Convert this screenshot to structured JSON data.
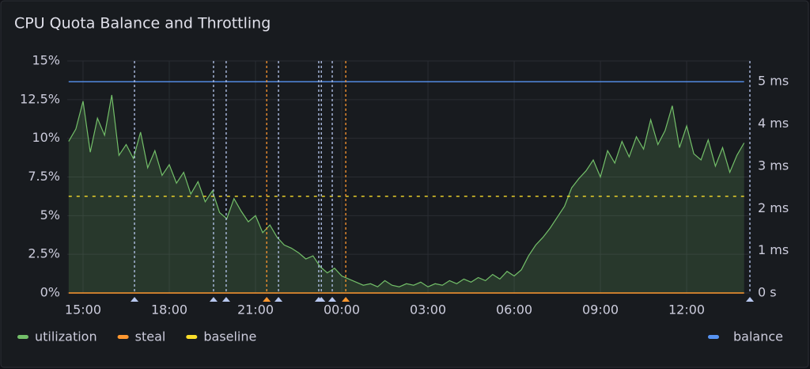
{
  "chart_data": {
    "type": "line",
    "title": "CPU Quota Balance and Throttling",
    "x": [
      14.5,
      14.75,
      15,
      15.25,
      15.5,
      15.75,
      16,
      16.25,
      16.5,
      16.75,
      17,
      17.25,
      17.5,
      17.75,
      18,
      18.25,
      18.5,
      18.75,
      19,
      19.25,
      19.5,
      19.75,
      20,
      20.25,
      20.5,
      20.75,
      21,
      21.25,
      21.5,
      21.75,
      22,
      22.25,
      22.5,
      22.75,
      23,
      23.25,
      23.5,
      23.75,
      24,
      24.25,
      24.5,
      24.75,
      25,
      25.25,
      25.5,
      25.75,
      26,
      26.25,
      26.5,
      26.75,
      27,
      27.25,
      27.5,
      27.75,
      28,
      28.25,
      28.5,
      28.75,
      29,
      29.25,
      29.5,
      29.75,
      30,
      30.25,
      30.5,
      30.75,
      31,
      31.25,
      31.5,
      31.75,
      32,
      32.25,
      32.5,
      32.75,
      33,
      33.25,
      33.5,
      33.75,
      34,
      34.25,
      34.5,
      34.75,
      35,
      35.25,
      35.5,
      35.75,
      36,
      36.25,
      36.5,
      36.75,
      37,
      37.25,
      37.5,
      37.75,
      38
    ],
    "xlim": [
      14.45,
      38.2
    ],
    "xticks": [
      {
        "value": 15,
        "label": "15:00"
      },
      {
        "value": 18,
        "label": "18:00"
      },
      {
        "value": 21,
        "label": "21:00"
      },
      {
        "value": 24,
        "label": "00:00"
      },
      {
        "value": 27,
        "label": "03:00"
      },
      {
        "value": 30,
        "label": "06:00"
      },
      {
        "value": 33,
        "label": "09:00"
      },
      {
        "value": 36,
        "label": "12:00"
      }
    ],
    "ylim": [
      0,
      15
    ],
    "yticks": [
      {
        "value": 0,
        "label": "0%"
      },
      {
        "value": 2.5,
        "label": "2.5%"
      },
      {
        "value": 5,
        "label": "5%"
      },
      {
        "value": 7.5,
        "label": "7.5%"
      },
      {
        "value": 10,
        "label": "10%"
      },
      {
        "value": 12.5,
        "label": "12.5%"
      },
      {
        "value": 15,
        "label": "15%"
      }
    ],
    "y2lim": [
      0,
      5.49
    ],
    "y2ticks": [
      {
        "value": 0,
        "label": "0 s"
      },
      {
        "value": 1,
        "label": "1 ms"
      },
      {
        "value": 2,
        "label": "2 ms"
      },
      {
        "value": 3,
        "label": "3 ms"
      },
      {
        "value": 4,
        "label": "4 ms"
      },
      {
        "value": 5,
        "label": "5 ms"
      }
    ],
    "grid": true,
    "series": [
      {
        "name": "utilization",
        "color": "#73bf69",
        "fill": true,
        "values": [
          9.8,
          10.6,
          12.4,
          9.1,
          11.3,
          10.2,
          12.8,
          8.9,
          9.6,
          8.7,
          10.4,
          8.1,
          9.2,
          7.6,
          8.3,
          7.1,
          7.8,
          6.4,
          7.2,
          5.9,
          6.6,
          5.2,
          4.8,
          6.1,
          5.3,
          4.6,
          5.0,
          3.9,
          4.4,
          3.6,
          3.1,
          2.9,
          2.6,
          2.2,
          2.4,
          1.7,
          1.3,
          1.6,
          1.1,
          0.9,
          0.7,
          0.5,
          0.6,
          0.4,
          0.8,
          0.5,
          0.4,
          0.6,
          0.5,
          0.7,
          0.4,
          0.6,
          0.5,
          0.8,
          0.6,
          0.9,
          0.7,
          1.0,
          0.8,
          1.2,
          0.9,
          1.4,
          1.1,
          1.5,
          2.4,
          3.1,
          3.6,
          4.2,
          4.9,
          5.6,
          6.8,
          7.4,
          7.9,
          8.6,
          7.5,
          9.2,
          8.4,
          9.8,
          8.8,
          10.1,
          9.3,
          11.2,
          9.6,
          10.5,
          12.1,
          9.4,
          10.8,
          9.0,
          8.6,
          9.9,
          8.2,
          9.4,
          7.8,
          8.9,
          9.7
        ]
      },
      {
        "name": "steal",
        "color": "#ff9830",
        "values": [
          0,
          0,
          0,
          0,
          0,
          0,
          0,
          0,
          0,
          0,
          0,
          0,
          0,
          0,
          0,
          0,
          0,
          0,
          0,
          0,
          0,
          0,
          0,
          0,
          0,
          0,
          0,
          0,
          0,
          0,
          0,
          0,
          0,
          0,
          0,
          0,
          0,
          0,
          0,
          0,
          0,
          0,
          0,
          0,
          0,
          0,
          0,
          0,
          0,
          0,
          0,
          0,
          0,
          0,
          0,
          0,
          0,
          0,
          0,
          0,
          0,
          0,
          0,
          0,
          0,
          0,
          0,
          0,
          0,
          0,
          0,
          0,
          0,
          0,
          0,
          0,
          0,
          0,
          0,
          0,
          0,
          0,
          0,
          0,
          0,
          0,
          0,
          0,
          0,
          0,
          0,
          0,
          0,
          0,
          0
        ]
      },
      {
        "name": "baseline",
        "color": "#fade2a",
        "dashed": true,
        "values": [
          6.25,
          6.25,
          6.25,
          6.25,
          6.25,
          6.25,
          6.25,
          6.25,
          6.25,
          6.25,
          6.25,
          6.25,
          6.25,
          6.25,
          6.25,
          6.25,
          6.25,
          6.25,
          6.25,
          6.25,
          6.25,
          6.25,
          6.25,
          6.25,
          6.25,
          6.25,
          6.25,
          6.25,
          6.25,
          6.25,
          6.25,
          6.25,
          6.25,
          6.25,
          6.25,
          6.25,
          6.25,
          6.25,
          6.25,
          6.25,
          6.25,
          6.25,
          6.25,
          6.25,
          6.25,
          6.25,
          6.25,
          6.25,
          6.25,
          6.25,
          6.25,
          6.25,
          6.25,
          6.25,
          6.25,
          6.25,
          6.25,
          6.25,
          6.25,
          6.25,
          6.25,
          6.25,
          6.25,
          6.25,
          6.25,
          6.25,
          6.25,
          6.25,
          6.25,
          6.25,
          6.25,
          6.25,
          6.25,
          6.25,
          6.25,
          6.25,
          6.25,
          6.25,
          6.25,
          6.25,
          6.25,
          6.25,
          6.25,
          6.25,
          6.25,
          6.25,
          6.25,
          6.25,
          6.25,
          6.25,
          6.25,
          6.25,
          6.25,
          6.25,
          6.25
        ]
      },
      {
        "name": "balance",
        "color": "#5794f2",
        "axis": "y2",
        "values": [
          5,
          5,
          5,
          5,
          5,
          5,
          5,
          5,
          5,
          5,
          5,
          5,
          5,
          5,
          5,
          5,
          5,
          5,
          5,
          5,
          5,
          5,
          5,
          5,
          5,
          5,
          5,
          5,
          5,
          5,
          5,
          5,
          5,
          5,
          5,
          5,
          5,
          5,
          5,
          5,
          5,
          5,
          5,
          5,
          5,
          5,
          5,
          5,
          5,
          5,
          5,
          5,
          5,
          5,
          5,
          5,
          5,
          5,
          5,
          5,
          5,
          5,
          5,
          5,
          5,
          5,
          5,
          5,
          5,
          5,
          5,
          5,
          5,
          5,
          5,
          5,
          5,
          5,
          5,
          5,
          5,
          5,
          5,
          5,
          5,
          5,
          5,
          5,
          5,
          5,
          5,
          5,
          5,
          5,
          5
        ]
      }
    ],
    "annotations": [
      {
        "x": 16.79,
        "color": "#b8c8f0"
      },
      {
        "x": 19.54,
        "color": "#b8c8f0"
      },
      {
        "x": 19.98,
        "color": "#b8c8f0"
      },
      {
        "x": 21.39,
        "color": "#ff9830"
      },
      {
        "x": 21.8,
        "color": "#b8c8f0"
      },
      {
        "x": 23.2,
        "color": "#b8c8f0"
      },
      {
        "x": 23.29,
        "color": "#b8c8f0"
      },
      {
        "x": 23.67,
        "color": "#b8c8f0"
      },
      {
        "x": 24.14,
        "color": "#ff9830"
      },
      {
        "x": 38.2,
        "color": "#b8c8f0"
      }
    ]
  }
}
